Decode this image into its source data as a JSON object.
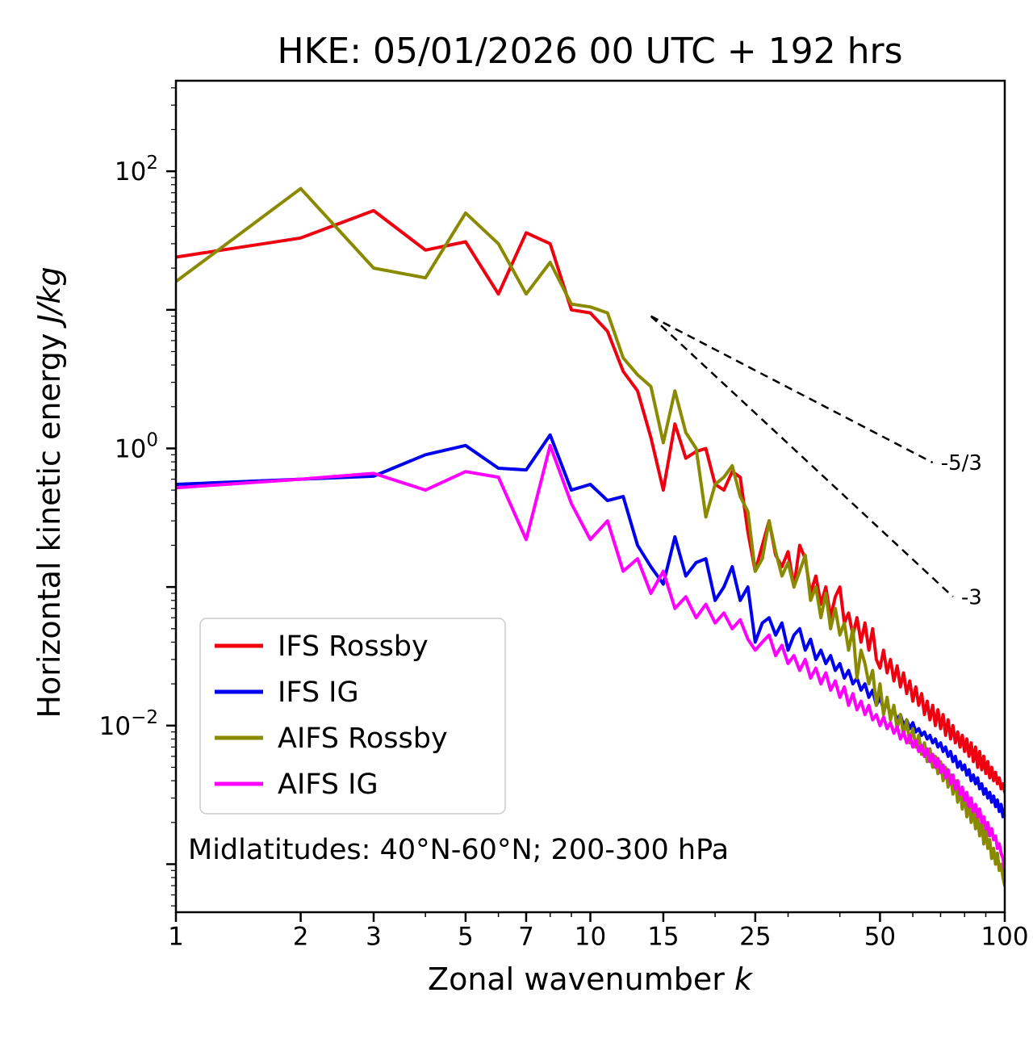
{
  "chart_data": {
    "type": "line",
    "title": "HKE: 05/01/2026 00 UTC + 192 hrs",
    "xlabel_prefix": "Zonal wavenumber ",
    "xlabel_math": "k",
    "ylabel_prefix": "Horizontal kinetic energy ",
    "ylabel_math": "J/kg",
    "x_scale": "log",
    "y_scale": "log",
    "xlim": [
      1,
      100
    ],
    "ylim": [
      0.00045,
      450
    ],
    "x_major_ticks": [
      1,
      2,
      3,
      5,
      7,
      10,
      15,
      25,
      50,
      100
    ],
    "x_minor_ticks": [
      4,
      6,
      8,
      9,
      20,
      30,
      40,
      60,
      70,
      80,
      90
    ],
    "y_labeled_exponents": [
      2,
      0,
      -2
    ],
    "annotation": "Midlatitudes: 40°N-60°N; 200-300 hPa",
    "legend_position": "lower left",
    "grid": false,
    "x": [
      1,
      2,
      3,
      4,
      5,
      6,
      7,
      8,
      9,
      10,
      11,
      12,
      13,
      14,
      15,
      16,
      17,
      18,
      19,
      20,
      21,
      22,
      23,
      24,
      25,
      26,
      27,
      28,
      29,
      30,
      31,
      32,
      33,
      34,
      35,
      36,
      37,
      38,
      39,
      40,
      41,
      42,
      43,
      44,
      45,
      46,
      47,
      48,
      49,
      50,
      51,
      52,
      53,
      54,
      55,
      56,
      57,
      58,
      59,
      60,
      61,
      62,
      63,
      64,
      65,
      66,
      67,
      68,
      69,
      70,
      71,
      72,
      73,
      74,
      75,
      76,
      77,
      78,
      79,
      80,
      81,
      82,
      83,
      84,
      85,
      86,
      87,
      88,
      89,
      90,
      91,
      92,
      93,
      94,
      95,
      96,
      97,
      98,
      99,
      100
    ],
    "series": [
      {
        "name": "IFS Rossby",
        "color": "#ee0011",
        "values": [
          24,
          33,
          52,
          27,
          31,
          13,
          36,
          30,
          10,
          9.5,
          7.0,
          3.6,
          2.6,
          1.2,
          0.5,
          1.5,
          0.85,
          0.95,
          1.0,
          0.55,
          0.5,
          0.68,
          0.62,
          0.25,
          0.13,
          0.2,
          0.3,
          0.17,
          0.14,
          0.18,
          0.1,
          0.2,
          0.16,
          0.09,
          0.12,
          0.075,
          0.1,
          0.06,
          0.085,
          0.1,
          0.055,
          0.065,
          0.045,
          0.06,
          0.04,
          0.055,
          0.035,
          0.05,
          0.03,
          0.026,
          0.035,
          0.024,
          0.03,
          0.021,
          0.027,
          0.019,
          0.024,
          0.017,
          0.021,
          0.015,
          0.019,
          0.014,
          0.017,
          0.012,
          0.015,
          0.011,
          0.014,
          0.01,
          0.013,
          0.0095,
          0.012,
          0.0085,
          0.011,
          0.008,
          0.01,
          0.0075,
          0.009,
          0.007,
          0.0085,
          0.0065,
          0.008,
          0.006,
          0.0075,
          0.0055,
          0.007,
          0.005,
          0.0065,
          0.0048,
          0.006,
          0.0045,
          0.0055,
          0.0042,
          0.005,
          0.004,
          0.0046,
          0.0038,
          0.0042,
          0.0035,
          0.0038,
          0.0033
        ]
      },
      {
        "name": "IFS IG",
        "color": "#0000ee",
        "values": [
          0.55,
          0.6,
          0.63,
          0.9,
          1.05,
          0.72,
          0.7,
          1.25,
          0.5,
          0.55,
          0.42,
          0.45,
          0.2,
          0.14,
          0.105,
          0.23,
          0.12,
          0.15,
          0.16,
          0.08,
          0.1,
          0.14,
          0.08,
          0.1,
          0.04,
          0.055,
          0.06,
          0.045,
          0.055,
          0.035,
          0.045,
          0.05,
          0.035,
          0.042,
          0.03,
          0.035,
          0.028,
          0.032,
          0.025,
          0.028,
          0.022,
          0.025,
          0.02,
          0.022,
          0.018,
          0.02,
          0.016,
          0.018,
          0.014,
          0.016,
          0.013,
          0.0145,
          0.012,
          0.013,
          0.011,
          0.012,
          0.01,
          0.011,
          0.0095,
          0.0105,
          0.009,
          0.0095,
          0.0085,
          0.009,
          0.008,
          0.0085,
          0.0075,
          0.008,
          0.007,
          0.0075,
          0.0065,
          0.007,
          0.006,
          0.0065,
          0.0055,
          0.006,
          0.005,
          0.0055,
          0.0048,
          0.0052,
          0.0044,
          0.0048,
          0.004,
          0.0044,
          0.0038,
          0.0042,
          0.0035,
          0.0038,
          0.0032,
          0.0035,
          0.003,
          0.0033,
          0.0028,
          0.0031,
          0.0026,
          0.0029,
          0.0024,
          0.0027,
          0.0022,
          0.0025
        ]
      },
      {
        "name": "AIFS Rossby",
        "color": "#8a8a00",
        "values": [
          16,
          75,
          20,
          17,
          50,
          30,
          13,
          22,
          11,
          10.5,
          9.5,
          4.5,
          3.4,
          2.8,
          1.1,
          2.6,
          1.3,
          1.0,
          0.32,
          0.55,
          0.62,
          0.75,
          0.45,
          0.35,
          0.13,
          0.16,
          0.3,
          0.18,
          0.12,
          0.15,
          0.1,
          0.13,
          0.17,
          0.08,
          0.1,
          0.06,
          0.09,
          0.05,
          0.07,
          0.045,
          0.055,
          0.035,
          0.05,
          0.022,
          0.035,
          0.028,
          0.02,
          0.025,
          0.014,
          0.02,
          0.012,
          0.016,
          0.011,
          0.014,
          0.0095,
          0.012,
          0.0085,
          0.011,
          0.0075,
          0.0095,
          0.007,
          0.0085,
          0.0062,
          0.0075,
          0.0055,
          0.0068,
          0.005,
          0.006,
          0.0045,
          0.0055,
          0.004,
          0.005,
          0.0036,
          0.0044,
          0.0032,
          0.004,
          0.0028,
          0.0035,
          0.0025,
          0.0032,
          0.0022,
          0.0028,
          0.002,
          0.0025,
          0.0018,
          0.0022,
          0.0016,
          0.002,
          0.0014,
          0.0018,
          0.0013,
          0.0015,
          0.0011,
          0.0013,
          0.001,
          0.0012,
          0.0009,
          0.001,
          0.0008,
          0.0007
        ]
      },
      {
        "name": "AIFS IG",
        "color": "#ff00ff",
        "values": [
          0.52,
          0.6,
          0.66,
          0.5,
          0.68,
          0.62,
          0.22,
          1.05,
          0.4,
          0.22,
          0.3,
          0.13,
          0.16,
          0.09,
          0.13,
          0.07,
          0.085,
          0.06,
          0.075,
          0.055,
          0.065,
          0.05,
          0.058,
          0.042,
          0.035,
          0.04,
          0.045,
          0.032,
          0.038,
          0.028,
          0.032,
          0.025,
          0.03,
          0.022,
          0.026,
          0.02,
          0.024,
          0.018,
          0.021,
          0.016,
          0.019,
          0.014,
          0.017,
          0.013,
          0.015,
          0.012,
          0.014,
          0.011,
          0.012,
          0.01,
          0.0115,
          0.0095,
          0.0105,
          0.0088,
          0.0098,
          0.008,
          0.009,
          0.0075,
          0.0085,
          0.007,
          0.0078,
          0.0065,
          0.0072,
          0.006,
          0.0068,
          0.0055,
          0.0062,
          0.005,
          0.0058,
          0.0046,
          0.0052,
          0.0042,
          0.0048,
          0.0038,
          0.0044,
          0.0035,
          0.004,
          0.0032,
          0.0036,
          0.0029,
          0.0033,
          0.0026,
          0.003,
          0.0024,
          0.0027,
          0.0022,
          0.0025,
          0.002,
          0.0022,
          0.0018,
          0.002,
          0.0016,
          0.0018,
          0.0015,
          0.0016,
          0.0013,
          0.0014,
          0.0012,
          0.0011,
          0.0009
        ]
      }
    ],
    "ref_lines": [
      {
        "label": "-5/3",
        "x1": 14,
        "y1": 9,
        "x2": 67,
        "y2": 0.79
      },
      {
        "label": "-3",
        "x1": 14,
        "y1": 9,
        "x2": 75,
        "y2": 0.085
      }
    ]
  }
}
